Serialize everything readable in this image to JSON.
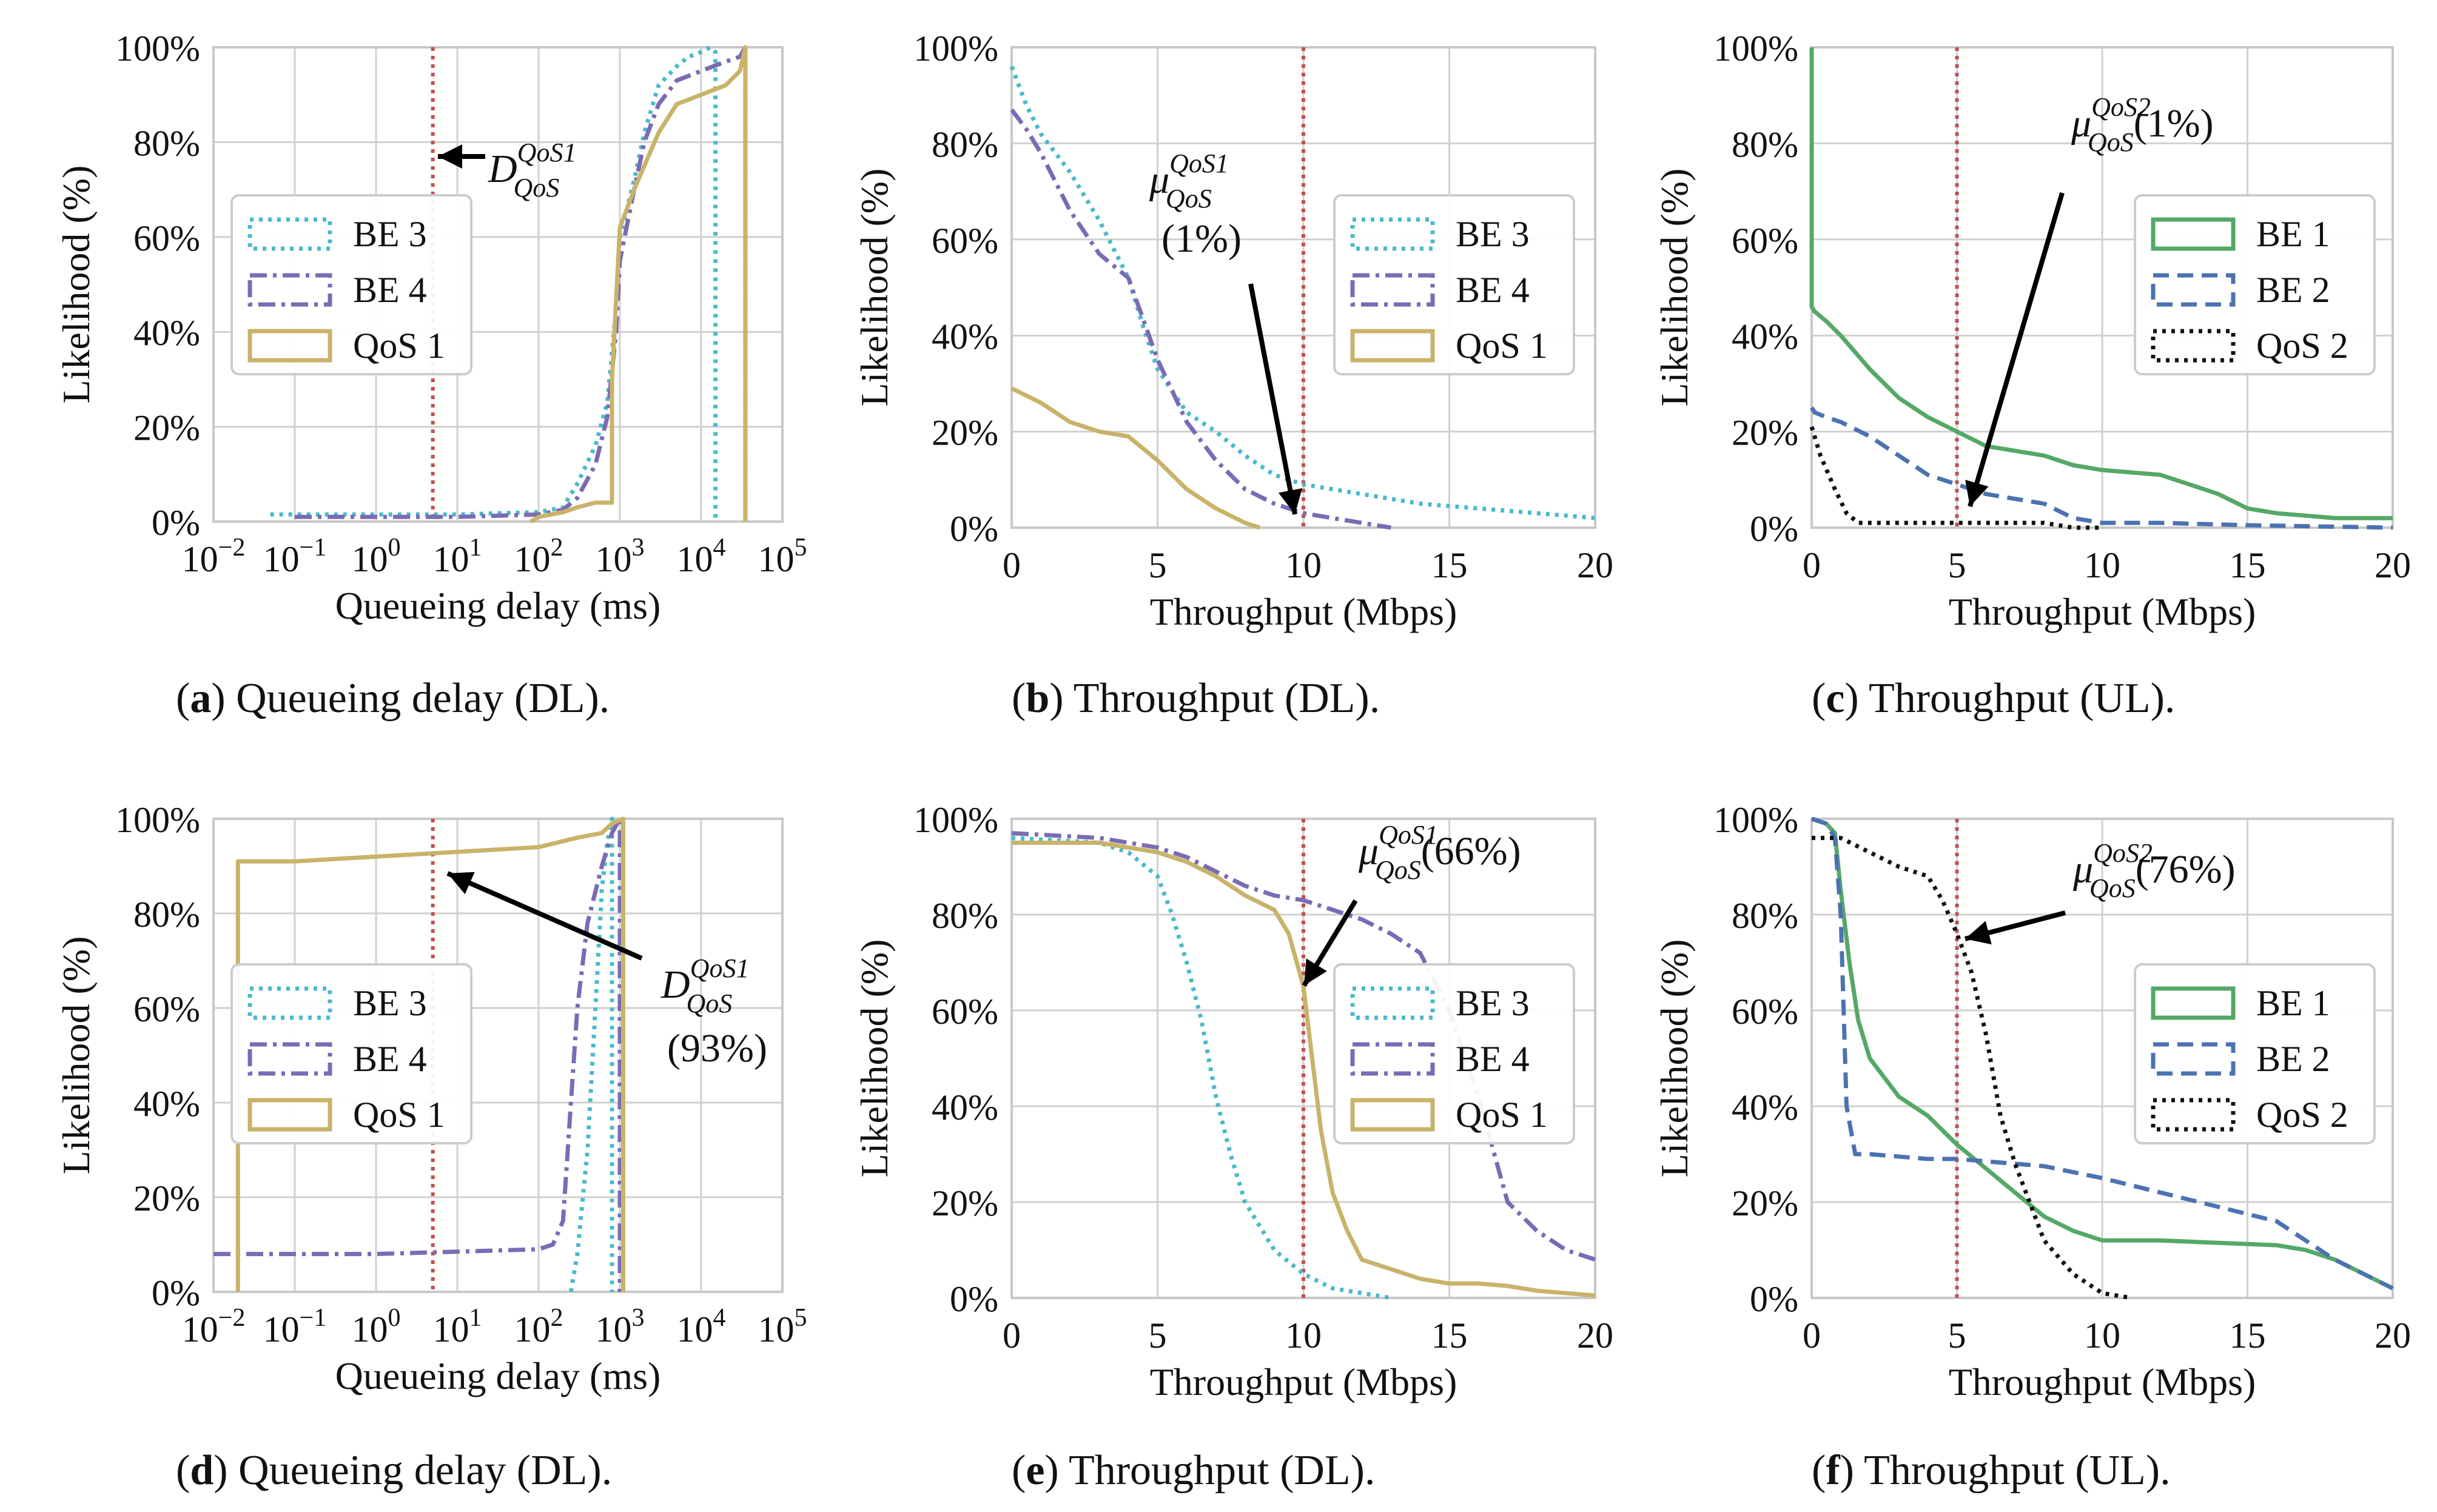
{
  "chart_data": [
    {
      "id": "a",
      "type": "line",
      "xscale": "log",
      "xlim": [
        0.01,
        100000
      ],
      "ylim": [
        0,
        100
      ],
      "xticks": [
        0.01,
        0.1,
        1,
        10,
        100,
        1000,
        10000,
        100000
      ],
      "xtick_labels": [
        [
          "10",
          "−2"
        ],
        [
          "10",
          "−1"
        ],
        [
          "10",
          "0"
        ],
        [
          "10",
          "1"
        ],
        [
          "10",
          "2"
        ],
        [
          "10",
          "3"
        ],
        [
          "10",
          "4"
        ],
        [
          "10",
          "5"
        ]
      ],
      "yticks": [
        0,
        20,
        40,
        60,
        80,
        100
      ],
      "ytick_labels": [
        "0%",
        "20%",
        "40%",
        "60%",
        "80%",
        "100%"
      ],
      "xlabel": "Queueing delay (ms)",
      "ylabel": "Likelihood (%)",
      "caption_letter": "a",
      "caption_text": " Queueing delay (DL).",
      "legend": [
        "BE 3",
        "BE 4",
        "QoS 1"
      ],
      "vline": 5,
      "series": [
        {
          "name": "BE 3",
          "color": "#4bb9cc",
          "dash": "dot",
          "x": [
            0.05,
            0.1,
            1,
            10,
            100,
            200,
            300,
            500,
            700,
            900,
            1000,
            1500,
            2000,
            3000,
            5000,
            7000,
            10000,
            13000,
            15000,
            15000
          ],
          "y": [
            1.5,
            1.5,
            1.5,
            1.5,
            2,
            3,
            8,
            16,
            25,
            45,
            60,
            72,
            82,
            92,
            96,
            98,
            99,
            100,
            99,
            0
          ]
        },
        {
          "name": "BE 4",
          "color": "#7b6bb4",
          "dash": "dashdot",
          "x": [
            0.1,
            1,
            10,
            100,
            200,
            300,
            500,
            700,
            900,
            1000,
            1500,
            2000,
            3000,
            5000,
            10000,
            20000,
            30000,
            35000,
            35000
          ],
          "y": [
            1,
            1,
            1,
            1.5,
            2.5,
            5,
            12,
            22,
            40,
            55,
            70,
            80,
            88,
            93,
            95,
            97,
            98,
            100,
            0
          ]
        },
        {
          "name": "QoS 1",
          "color": "#c8b36a",
          "dash": "solid",
          "x": [
            80,
            100,
            200,
            300,
            500,
            800,
            800,
            1000,
            1500,
            2000,
            3000,
            5000,
            10000,
            20000,
            30000,
            35000,
            35000
          ],
          "y": [
            0,
            1,
            2,
            3,
            4,
            4,
            30,
            62,
            70,
            75,
            82,
            88,
            90,
            92,
            95,
            100,
            0
          ]
        }
      ],
      "annotation": {
        "symbol": "D",
        "sup": "QoS1",
        "sub": "QoS",
        "text": ""
      }
    },
    {
      "id": "b",
      "type": "line",
      "xscale": "linear",
      "xlim": [
        0,
        20
      ],
      "ylim": [
        0,
        100
      ],
      "xticks": [
        0,
        5,
        10,
        15,
        20
      ],
      "xtick_labels": [
        [
          "0"
        ],
        [
          "5"
        ],
        [
          "10"
        ],
        [
          "15"
        ],
        [
          "20"
        ]
      ],
      "yticks": [
        0,
        20,
        40,
        60,
        80,
        100
      ],
      "ytick_labels": [
        "0%",
        "20%",
        "40%",
        "60%",
        "80%",
        "100%"
      ],
      "xlabel": "Throughput (Mbps)",
      "ylabel": "Likelihood (%)",
      "caption_letter": "b",
      "caption_text": " Throughput (DL).",
      "legend": [
        "BE 3",
        "BE 4",
        "QoS 1"
      ],
      "vline": 10,
      "series": [
        {
          "name": "BE 3",
          "color": "#4bb9cc",
          "dash": "dot",
          "x": [
            0,
            0.5,
            1,
            2,
            3,
            3.5,
            4,
            4.5,
            5,
            6,
            7,
            8,
            9,
            10,
            12,
            14,
            16,
            18,
            20
          ],
          "y": [
            96,
            88,
            82,
            74,
            64,
            58,
            52,
            42,
            33,
            24,
            20,
            15,
            11,
            9,
            7,
            5,
            4,
            3,
            2
          ]
        },
        {
          "name": "BE 4",
          "color": "#7b6bb4",
          "dash": "dashdot",
          "x": [
            0,
            0.5,
            1,
            2,
            3,
            4,
            5,
            6,
            7,
            8,
            9,
            10,
            11,
            12,
            13
          ],
          "y": [
            87,
            83,
            78,
            66,
            57,
            52,
            35,
            22,
            14,
            8,
            5,
            3,
            2,
            1,
            0
          ]
        },
        {
          "name": "QoS 1",
          "color": "#c8b36a",
          "dash": "solid",
          "x": [
            0,
            1,
            2,
            3,
            4,
            5,
            6,
            7,
            8,
            8.5
          ],
          "y": [
            29,
            26,
            22,
            20,
            19,
            14,
            8,
            4,
            1,
            0
          ]
        }
      ],
      "annotation": {
        "symbol": "μ",
        "sup": "QoS1",
        "sub": "QoS",
        "text": "(1%)"
      }
    },
    {
      "id": "c",
      "type": "line",
      "xscale": "linear",
      "xlim": [
        0,
        20
      ],
      "ylim": [
        0,
        100
      ],
      "xticks": [
        0,
        5,
        10,
        15,
        20
      ],
      "xtick_labels": [
        [
          "0"
        ],
        [
          "5"
        ],
        [
          "10"
        ],
        [
          "15"
        ],
        [
          "20"
        ]
      ],
      "yticks": [
        0,
        20,
        40,
        60,
        80,
        100
      ],
      "ytick_labels": [
        "0%",
        "20%",
        "40%",
        "60%",
        "80%",
        "100%"
      ],
      "xlabel": "Throughput (Mbps)",
      "ylabel": "Likelihood (%)",
      "caption_letter": "c",
      "caption_text": " Throughput (UL).",
      "legend": [
        "BE 1",
        "BE 2",
        "QoS 2"
      ],
      "vline": 5,
      "series": [
        {
          "name": "BE 1",
          "color": "#55a868",
          "dash": "solid",
          "x": [
            0,
            0,
            0.1,
            0.5,
            1,
            2,
            3,
            4,
            5,
            6,
            7,
            8,
            9,
            10,
            12,
            13,
            14,
            15,
            16,
            18,
            20
          ],
          "y": [
            100,
            46,
            45,
            43,
            40,
            33,
            27,
            23,
            20,
            17,
            16,
            15,
            13,
            12,
            11,
            9,
            7,
            4,
            3,
            2,
            2
          ]
        },
        {
          "name": "BE 2",
          "color": "#4c72b0",
          "dash": "dash",
          "x": [
            0,
            0.1,
            0.5,
            1,
            2,
            3,
            4,
            5,
            6,
            7,
            8,
            9,
            10,
            12,
            15,
            20
          ],
          "y": [
            25,
            24,
            23,
            22,
            19,
            15,
            11,
            9,
            7,
            6,
            5,
            2,
            1,
            1,
            0.5,
            0
          ]
        },
        {
          "name": "QoS 2",
          "color": "#111111",
          "dash": "dot",
          "x": [
            0,
            0.3,
            0.8,
            1.2,
            1.6,
            2,
            3,
            4,
            5,
            6,
            7,
            8,
            9,
            10
          ],
          "y": [
            21,
            15,
            8,
            3,
            1,
            1,
            1,
            1,
            1,
            1,
            1,
            1,
            0,
            0
          ]
        }
      ],
      "annotation": {
        "symbol": "μ",
        "sup": "QoS2",
        "sub": "QoS",
        "text": "(1%)"
      }
    },
    {
      "id": "d",
      "type": "line",
      "xscale": "log",
      "xlim": [
        0.01,
        100000
      ],
      "ylim": [
        0,
        100
      ],
      "xticks": [
        0.01,
        0.1,
        1,
        10,
        100,
        1000,
        10000,
        100000
      ],
      "xtick_labels": [
        [
          "10",
          "−2"
        ],
        [
          "10",
          "−1"
        ],
        [
          "10",
          "0"
        ],
        [
          "10",
          "1"
        ],
        [
          "10",
          "2"
        ],
        [
          "10",
          "3"
        ],
        [
          "10",
          "4"
        ],
        [
          "10",
          "5"
        ]
      ],
      "yticks": [
        0,
        20,
        40,
        60,
        80,
        100
      ],
      "ytick_labels": [
        "0%",
        "20%",
        "40%",
        "60%",
        "80%",
        "100%"
      ],
      "xlabel": "Queueing delay (ms)",
      "ylabel": "Likelihood (%)",
      "caption_letter": "d",
      "caption_text": " Queueing delay (DL).",
      "legend": [
        "BE 3",
        "BE 4",
        "QoS 1"
      ],
      "vline": 5,
      "series": [
        {
          "name": "BE 3",
          "color": "#4bb9cc",
          "dash": "dot",
          "x": [
            250,
            300,
            400,
            500,
            600,
            700,
            800,
            800
          ],
          "y": [
            0,
            8,
            30,
            60,
            85,
            95,
            100,
            0
          ]
        },
        {
          "name": "BE 4",
          "color": "#7b6bb4",
          "dash": "dashdot",
          "x": [
            0.01,
            1,
            10,
            100,
            150,
            200,
            250,
            300,
            400,
            600,
            800,
            1000,
            1000
          ],
          "y": [
            8,
            8,
            8.5,
            9,
            10,
            15,
            40,
            60,
            78,
            90,
            97,
            100,
            0
          ]
        },
        {
          "name": "QoS 1",
          "color": "#c8b36a",
          "dash": "solid",
          "x": [
            0.02,
            0.02,
            0.1,
            1,
            10,
            100,
            300,
            600,
            800,
            1100,
            1100
          ],
          "y": [
            0,
            91,
            91,
            92,
            93,
            94,
            96,
            97,
            99,
            100,
            0
          ]
        }
      ],
      "annotation": {
        "symbol": "D",
        "sup": "QoS1",
        "sub": "QoS",
        "text": "(93%)"
      }
    },
    {
      "id": "e",
      "type": "line",
      "xscale": "linear",
      "xlim": [
        0,
        20
      ],
      "ylim": [
        0,
        100
      ],
      "xticks": [
        0,
        5,
        10,
        15,
        20
      ],
      "xtick_labels": [
        [
          "0"
        ],
        [
          "5"
        ],
        [
          "10"
        ],
        [
          "15"
        ],
        [
          "20"
        ]
      ],
      "yticks": [
        0,
        20,
        40,
        60,
        80,
        100
      ],
      "ytick_labels": [
        "0%",
        "20%",
        "40%",
        "60%",
        "80%",
        "100%"
      ],
      "xlabel": "Throughput (Mbps)",
      "ylabel": "Likelihood (%)",
      "caption_letter": "e",
      "caption_text": " Throughput (DL).",
      "legend": [
        "BE 3",
        "BE 4",
        "QoS 1"
      ],
      "vline": 10,
      "series": [
        {
          "name": "BE 3",
          "color": "#4bb9cc",
          "dash": "dot",
          "x": [
            0,
            3,
            4,
            5,
            5.5,
            6,
            6.5,
            7,
            7.5,
            8,
            9,
            10,
            11,
            12,
            13
          ],
          "y": [
            96,
            95,
            93,
            88,
            80,
            70,
            58,
            42,
            30,
            20,
            10,
            5,
            2,
            1,
            0
          ]
        },
        {
          "name": "BE 4",
          "color": "#7b6bb4",
          "dash": "dashdot",
          "x": [
            0,
            3,
            5,
            6,
            7,
            8,
            9,
            10,
            11,
            12,
            13,
            14,
            15,
            16,
            17,
            18,
            19,
            20
          ],
          "y": [
            97,
            96,
            94,
            92,
            89,
            86,
            84,
            83,
            81,
            79,
            76,
            72,
            60,
            42,
            20,
            14,
            10,
            8
          ]
        },
        {
          "name": "QoS 1",
          "color": "#c8b36a",
          "dash": "solid",
          "x": [
            0,
            3,
            5,
            6,
            7,
            8,
            9,
            9.5,
            10,
            10.3,
            10.6,
            11,
            11.5,
            12,
            13,
            14,
            15,
            16,
            17,
            18,
            19,
            20
          ],
          "y": [
            95,
            95,
            93,
            91,
            88,
            84,
            81,
            76,
            65,
            50,
            35,
            22,
            14,
            8,
            6,
            4,
            3,
            3,
            2.5,
            1.5,
            1,
            0.5
          ]
        }
      ],
      "annotation": {
        "symbol": "μ",
        "sup": "QoS1",
        "sub": "QoS",
        "text": "(66%)"
      }
    },
    {
      "id": "f",
      "type": "line",
      "xscale": "linear",
      "xlim": [
        0,
        20
      ],
      "ylim": [
        0,
        100
      ],
      "xticks": [
        0,
        5,
        10,
        15,
        20
      ],
      "xtick_labels": [
        [
          "0"
        ],
        [
          "5"
        ],
        [
          "10"
        ],
        [
          "15"
        ],
        [
          "20"
        ]
      ],
      "yticks": [
        0,
        20,
        40,
        60,
        80,
        100
      ],
      "ytick_labels": [
        "0%",
        "20%",
        "40%",
        "60%",
        "80%",
        "100%"
      ],
      "xlabel": "Throughput (Mbps)",
      "ylabel": "Likelihood (%)",
      "caption_letter": "f",
      "caption_text": " Throughput (UL).",
      "legend": [
        "BE 1",
        "BE 2",
        "QoS 2"
      ],
      "vline": 5,
      "series": [
        {
          "name": "BE 1",
          "color": "#55a868",
          "dash": "solid",
          "x": [
            0,
            0.5,
            0.8,
            1,
            1.3,
            1.6,
            2,
            3,
            4,
            5,
            6,
            7,
            8,
            9,
            10,
            12,
            14,
            16,
            17,
            18,
            19,
            20
          ],
          "y": [
            100,
            99,
            97,
            85,
            70,
            58,
            50,
            42,
            38,
            32,
            27,
            22,
            17,
            14,
            12,
            12,
            11.5,
            11,
            10,
            8,
            5,
            2
          ]
        },
        {
          "name": "BE 2",
          "color": "#4c72b0",
          "dash": "dash",
          "x": [
            0,
            0.5,
            0.8,
            1,
            1.2,
            1.5,
            2,
            3,
            4,
            5,
            6,
            8,
            10,
            12,
            14,
            16,
            17,
            18,
            19,
            20
          ],
          "y": [
            100,
            99,
            96,
            80,
            40,
            30,
            30,
            29.5,
            29,
            29,
            28.5,
            27.5,
            25,
            22,
            19,
            16,
            12,
            8,
            5,
            2
          ]
        },
        {
          "name": "QoS 2",
          "color": "#111111",
          "dash": "dot",
          "x": [
            0,
            1,
            2,
            3,
            4,
            4.5,
            5,
            5.5,
            6,
            6.5,
            7,
            7.5,
            8,
            9,
            10,
            11
          ],
          "y": [
            96,
            96,
            93,
            90,
            88,
            83,
            76,
            68,
            55,
            38,
            28,
            20,
            12,
            5,
            1,
            0
          ]
        }
      ],
      "annotation": {
        "symbol": "μ",
        "sup": "QoS2",
        "sub": "QoS",
        "text": "(76%)"
      }
    }
  ]
}
